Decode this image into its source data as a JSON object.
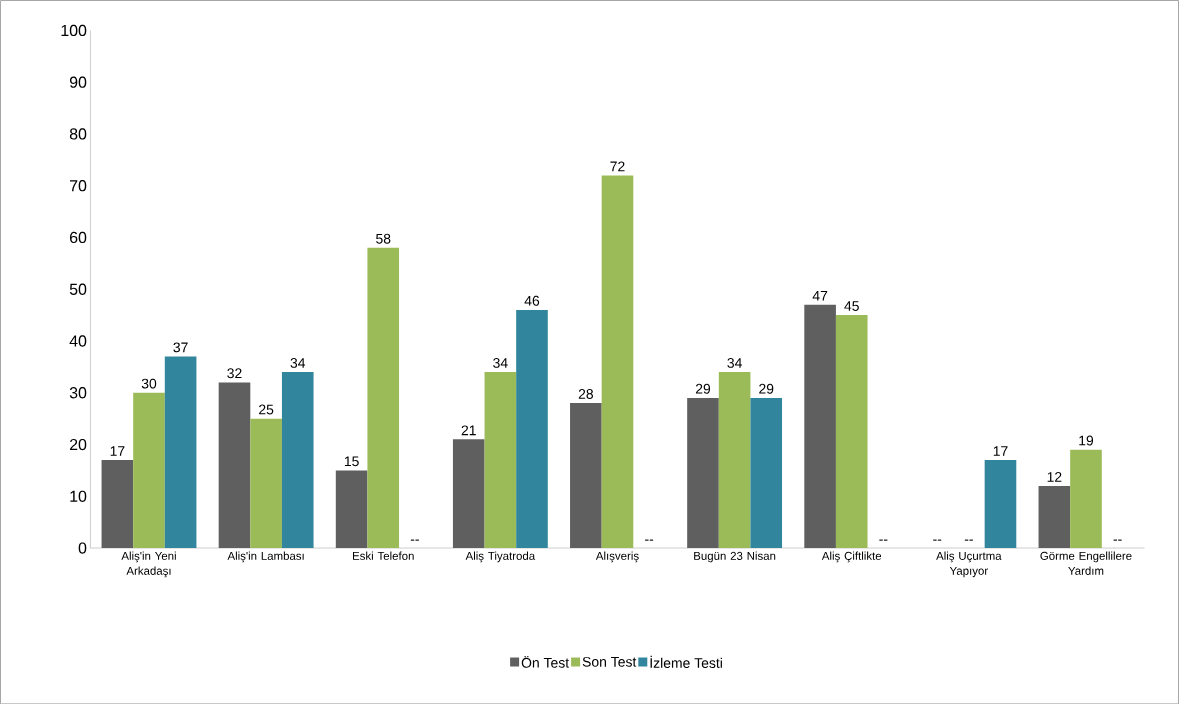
{
  "chart_data": {
    "type": "bar",
    "categories": [
      "Aliş'in Yeni Arkadaşı",
      "Aliş'in Lambası",
      "Eski Telefon",
      "Aliş Tiyatroda",
      "Alışveriş",
      "Bugün 23 Nisan",
      "Aliş Çiftlikte",
      "Aliş Uçurtma Yapıyor",
      "Görme Engellilere Yardım"
    ],
    "series": [
      {
        "name": "Ön Test",
        "color": "#5f5f5f",
        "values": [
          17,
          32,
          15,
          21,
          28,
          29,
          47,
          null,
          12
        ],
        "value_labels": [
          "17",
          "32",
          "15",
          "21",
          "28",
          "29",
          "47",
          "--",
          "12"
        ]
      },
      {
        "name": "Son Test",
        "color": "#9bbb59",
        "values": [
          30,
          25,
          58,
          34,
          72,
          34,
          45,
          null,
          19
        ],
        "value_labels": [
          "30",
          "25",
          "58",
          "34",
          "72",
          "34",
          "45",
          "--",
          "19"
        ]
      },
      {
        "name": "İzleme Testi",
        "color": "#31859c",
        "values": [
          37,
          34,
          null,
          46,
          null,
          29,
          null,
          17,
          null
        ],
        "value_labels": [
          "37",
          "34",
          "--",
          "46",
          "--",
          "29",
          "--",
          "17",
          "--"
        ]
      }
    ],
    "ylim": [
      0,
      100
    ],
    "yticks": [
      0,
      10,
      20,
      30,
      40,
      50,
      60,
      70,
      80,
      90,
      100
    ],
    "grid": false,
    "legend": "bottom"
  }
}
